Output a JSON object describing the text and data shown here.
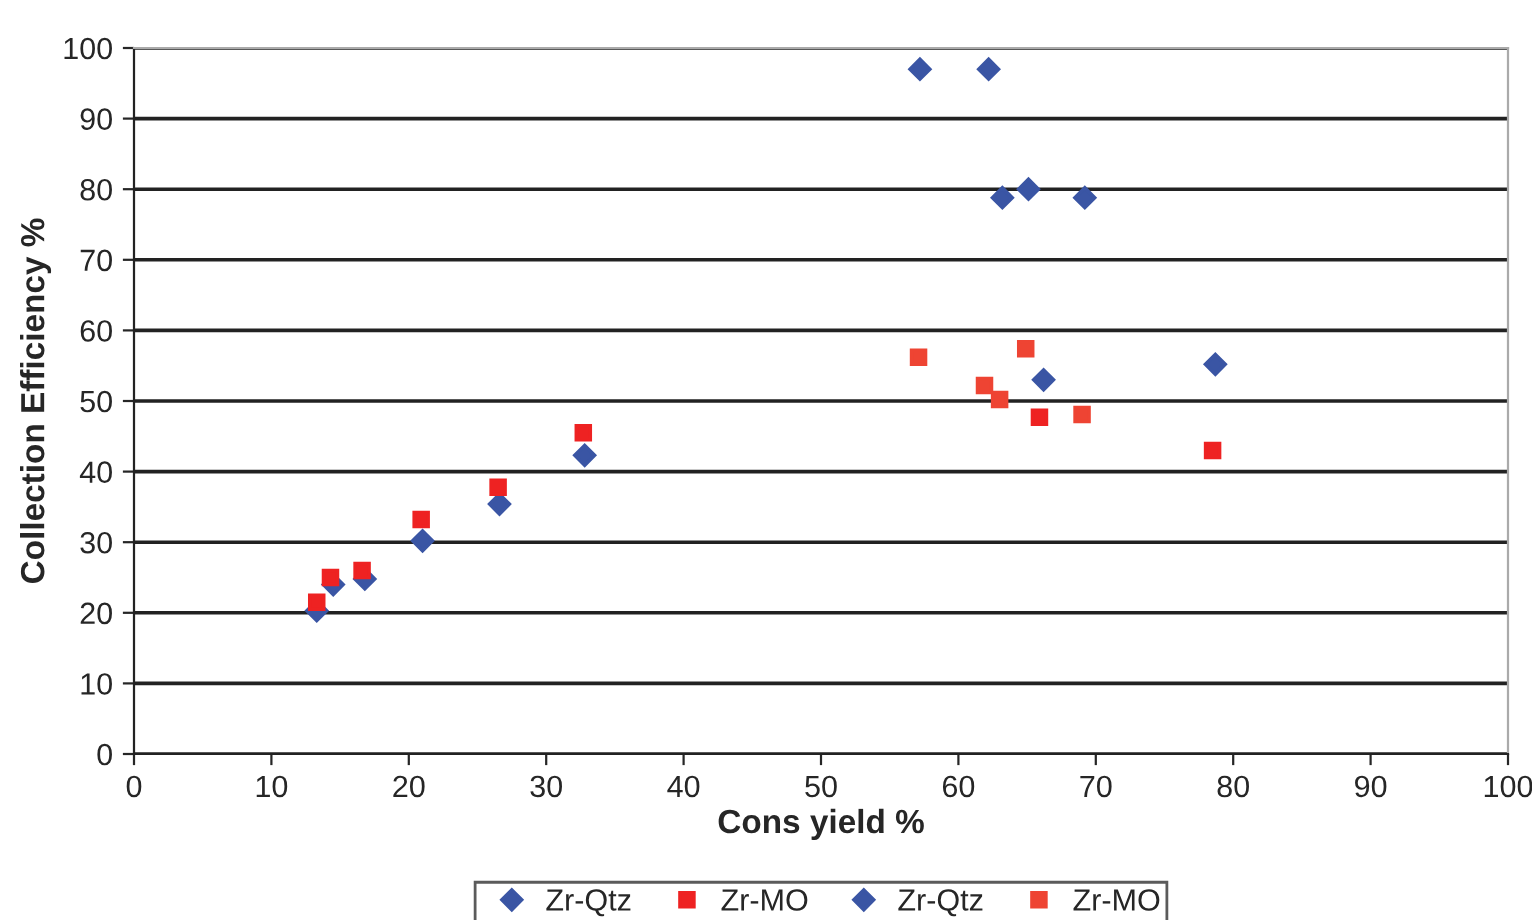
{
  "chart_data": {
    "type": "scatter",
    "xlabel": "Cons yield %",
    "ylabel": "Collection Efficiency %",
    "xlim": [
      0,
      100
    ],
    "xticks": [
      0,
      10,
      20,
      30,
      40,
      50,
      60,
      70,
      80,
      90,
      100
    ],
    "ylim": [
      0,
      100
    ],
    "yticks": [
      0,
      10,
      20,
      30,
      40,
      50,
      60,
      70,
      80,
      90,
      100
    ],
    "grid": "y",
    "legend": "bottom",
    "series": [
      {
        "name": "Zr-Qtz",
        "color": "#3a55a4",
        "marker": "diamond",
        "x": [
          13.3,
          14.5,
          16.8,
          21,
          26.6,
          32.8,
          66.2,
          78.7
        ],
        "values": [
          20.3,
          24,
          24.8,
          30.2,
          35.4,
          42.3,
          53,
          55.2
        ]
      },
      {
        "name": "Zr-MO",
        "color": "#ee2222",
        "marker": "square",
        "x": [
          13.3,
          14.3,
          16.6,
          20.9,
          26.5,
          32.7,
          65.9,
          78.5
        ],
        "values": [
          21.5,
          25,
          26,
          33.2,
          37.8,
          45.5,
          47.7,
          43
        ]
      },
      {
        "name": "Zr-Qtz",
        "color": "#3a55a4",
        "marker": "diamond",
        "x": [
          57.2,
          62.2,
          63.2,
          65.1,
          69.2
        ],
        "values": [
          97,
          97,
          78.8,
          80,
          78.8
        ]
      },
      {
        "name": "Zr-MO",
        "color": "#ee4433",
        "marker": "square",
        "x": [
          57.1,
          61.9,
          63,
          64.9,
          69
        ],
        "values": [
          56.2,
          52.2,
          50.2,
          57.4,
          48.1
        ]
      }
    ]
  }
}
